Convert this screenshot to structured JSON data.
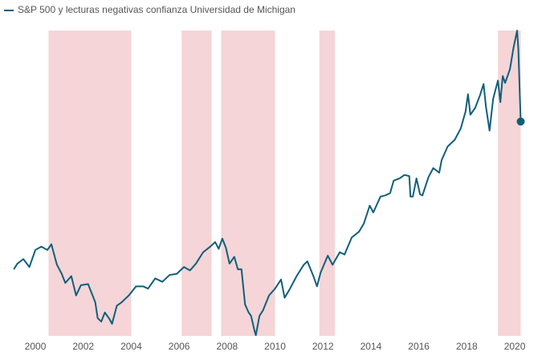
{
  "chart_data": {
    "type": "line",
    "x": [
      1999.1,
      1999.25,
      1999.5,
      1999.75,
      2000.0,
      2000.25,
      2000.5,
      2000.67,
      2000.9,
      2001.1,
      2001.25,
      2001.5,
      2001.7,
      2001.9,
      2002.2,
      2002.5,
      2002.6,
      2002.75,
      2002.9,
      2003.1,
      2003.2,
      2003.4,
      2003.6,
      2003.9,
      2004.2,
      2004.5,
      2004.7,
      2005.0,
      2005.3,
      2005.6,
      2005.9,
      2006.2,
      2006.45,
      2006.7,
      2007.0,
      2007.3,
      2007.5,
      2007.65,
      2007.8,
      2007.95,
      2008.1,
      2008.3,
      2008.45,
      2008.6,
      2008.75,
      2008.9,
      2009.0,
      2009.15,
      2009.2,
      2009.35,
      2009.5,
      2009.75,
      2010.0,
      2010.25,
      2010.4,
      2010.6,
      2010.9,
      2011.2,
      2011.35,
      2011.6,
      2011.75,
      2011.9,
      2012.2,
      2012.4,
      2012.7,
      2012.9,
      2013.2,
      2013.5,
      2013.7,
      2013.95,
      2014.1,
      2014.4,
      2014.6,
      2014.8,
      2014.95,
      2015.2,
      2015.4,
      2015.6,
      2015.65,
      2015.75,
      2015.9,
      2016.05,
      2016.15,
      2016.4,
      2016.6,
      2016.85,
      2016.95,
      2017.2,
      2017.5,
      2017.75,
      2017.95,
      2018.05,
      2018.15,
      2018.35,
      2018.55,
      2018.7,
      2018.8,
      2018.95,
      2019.1,
      2019.3,
      2019.4,
      2019.5,
      2019.6,
      2019.8,
      2019.95,
      2020.1,
      2020.15,
      2020.25
    ],
    "series": [
      {
        "name": "S&P 500 y lecturas negativas confianza Universidad de Michigan",
        "color": "#0f5f7a",
        "values": [
          1280,
          1330,
          1370,
          1300,
          1450,
          1480,
          1450,
          1500,
          1320,
          1240,
          1160,
          1220,
          1050,
          1140,
          1150,
          990,
          850,
          820,
          900,
          840,
          800,
          960,
          990,
          1050,
          1130,
          1130,
          1110,
          1200,
          1170,
          1230,
          1240,
          1300,
          1270,
          1330,
          1430,
          1480,
          1520,
          1460,
          1550,
          1470,
          1330,
          1390,
          1280,
          1280,
          970,
          900,
          870,
          735,
          700,
          870,
          920,
          1050,
          1110,
          1190,
          1030,
          1100,
          1220,
          1320,
          1350,
          1220,
          1130,
          1250,
          1400,
          1320,
          1430,
          1410,
          1560,
          1610,
          1680,
          1840,
          1780,
          1920,
          1930,
          1950,
          2060,
          2080,
          2110,
          2100,
          1920,
          1920,
          2080,
          1940,
          1930,
          2090,
          2170,
          2130,
          2240,
          2360,
          2420,
          2520,
          2670,
          2820,
          2640,
          2700,
          2810,
          2910,
          2710,
          2500,
          2780,
          2940,
          2750,
          2980,
          2920,
          3040,
          3230,
          3380,
          3220,
          2580
        ]
      }
    ],
    "shaded_ranges": [
      [
        2000.55,
        2004.0
      ],
      [
        2006.1,
        2007.35
      ],
      [
        2007.75,
        2010.0
      ],
      [
        2011.85,
        2012.5
      ],
      [
        2019.3,
        2020.25
      ]
    ],
    "shade_color": "#f5d5d7",
    "xlim": [
      1998.86,
      2020.97
    ],
    "ylim": [
      588,
      3437
    ],
    "xticks": [
      2000,
      2002,
      2004,
      2006,
      2008,
      2010,
      2012,
      2014,
      2016,
      2018,
      2020
    ]
  }
}
